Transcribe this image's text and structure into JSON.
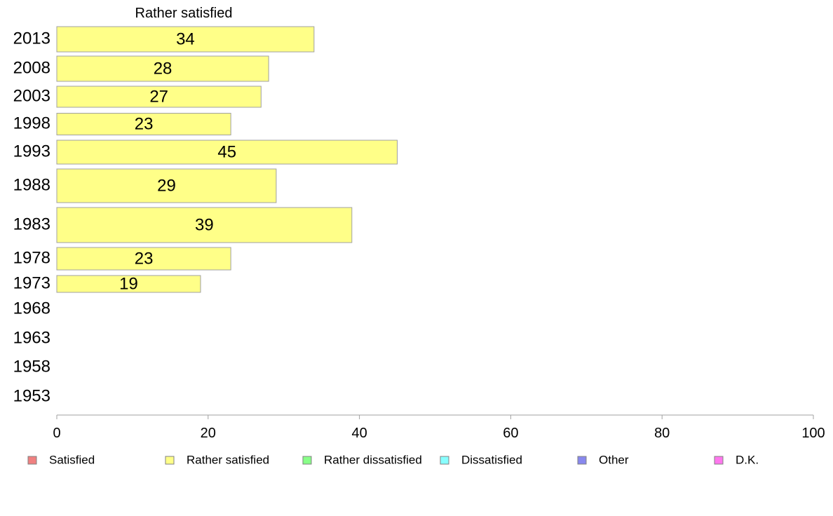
{
  "chart_data": {
    "type": "bar",
    "orientation": "horizontal",
    "title": "Rather satisfied",
    "categories": [
      "2013",
      "2008",
      "2003",
      "1998",
      "1993",
      "1988",
      "1983",
      "1978",
      "1973",
      "1968",
      "1963",
      "1958",
      "1953"
    ],
    "values": [
      34,
      28,
      27,
      23,
      45,
      29,
      39,
      23,
      19,
      null,
      null,
      null,
      null
    ],
    "value_labels": [
      "34",
      "28",
      "27",
      "23",
      "45",
      "29",
      "39",
      "23",
      "19",
      "",
      "",
      "",
      ""
    ],
    "bar_color": "#ffff88",
    "xlim": [
      0,
      100
    ],
    "xticks": [
      "0",
      "20",
      "40",
      "60",
      "80",
      "100"
    ],
    "grid": false,
    "legend_position": "bottom",
    "legend": [
      {
        "label": "Satisfied",
        "color": "#f08080"
      },
      {
        "label": "Rather satisfied",
        "color": "#ffff88"
      },
      {
        "label": "Rather dissatisfied",
        "color": "#88ff88"
      },
      {
        "label": "Dissatisfied",
        "color": "#88ffff"
      },
      {
        "label": "Other",
        "color": "#8888ee"
      },
      {
        "label": "D.K.",
        "color": "#ff77ee"
      }
    ]
  }
}
